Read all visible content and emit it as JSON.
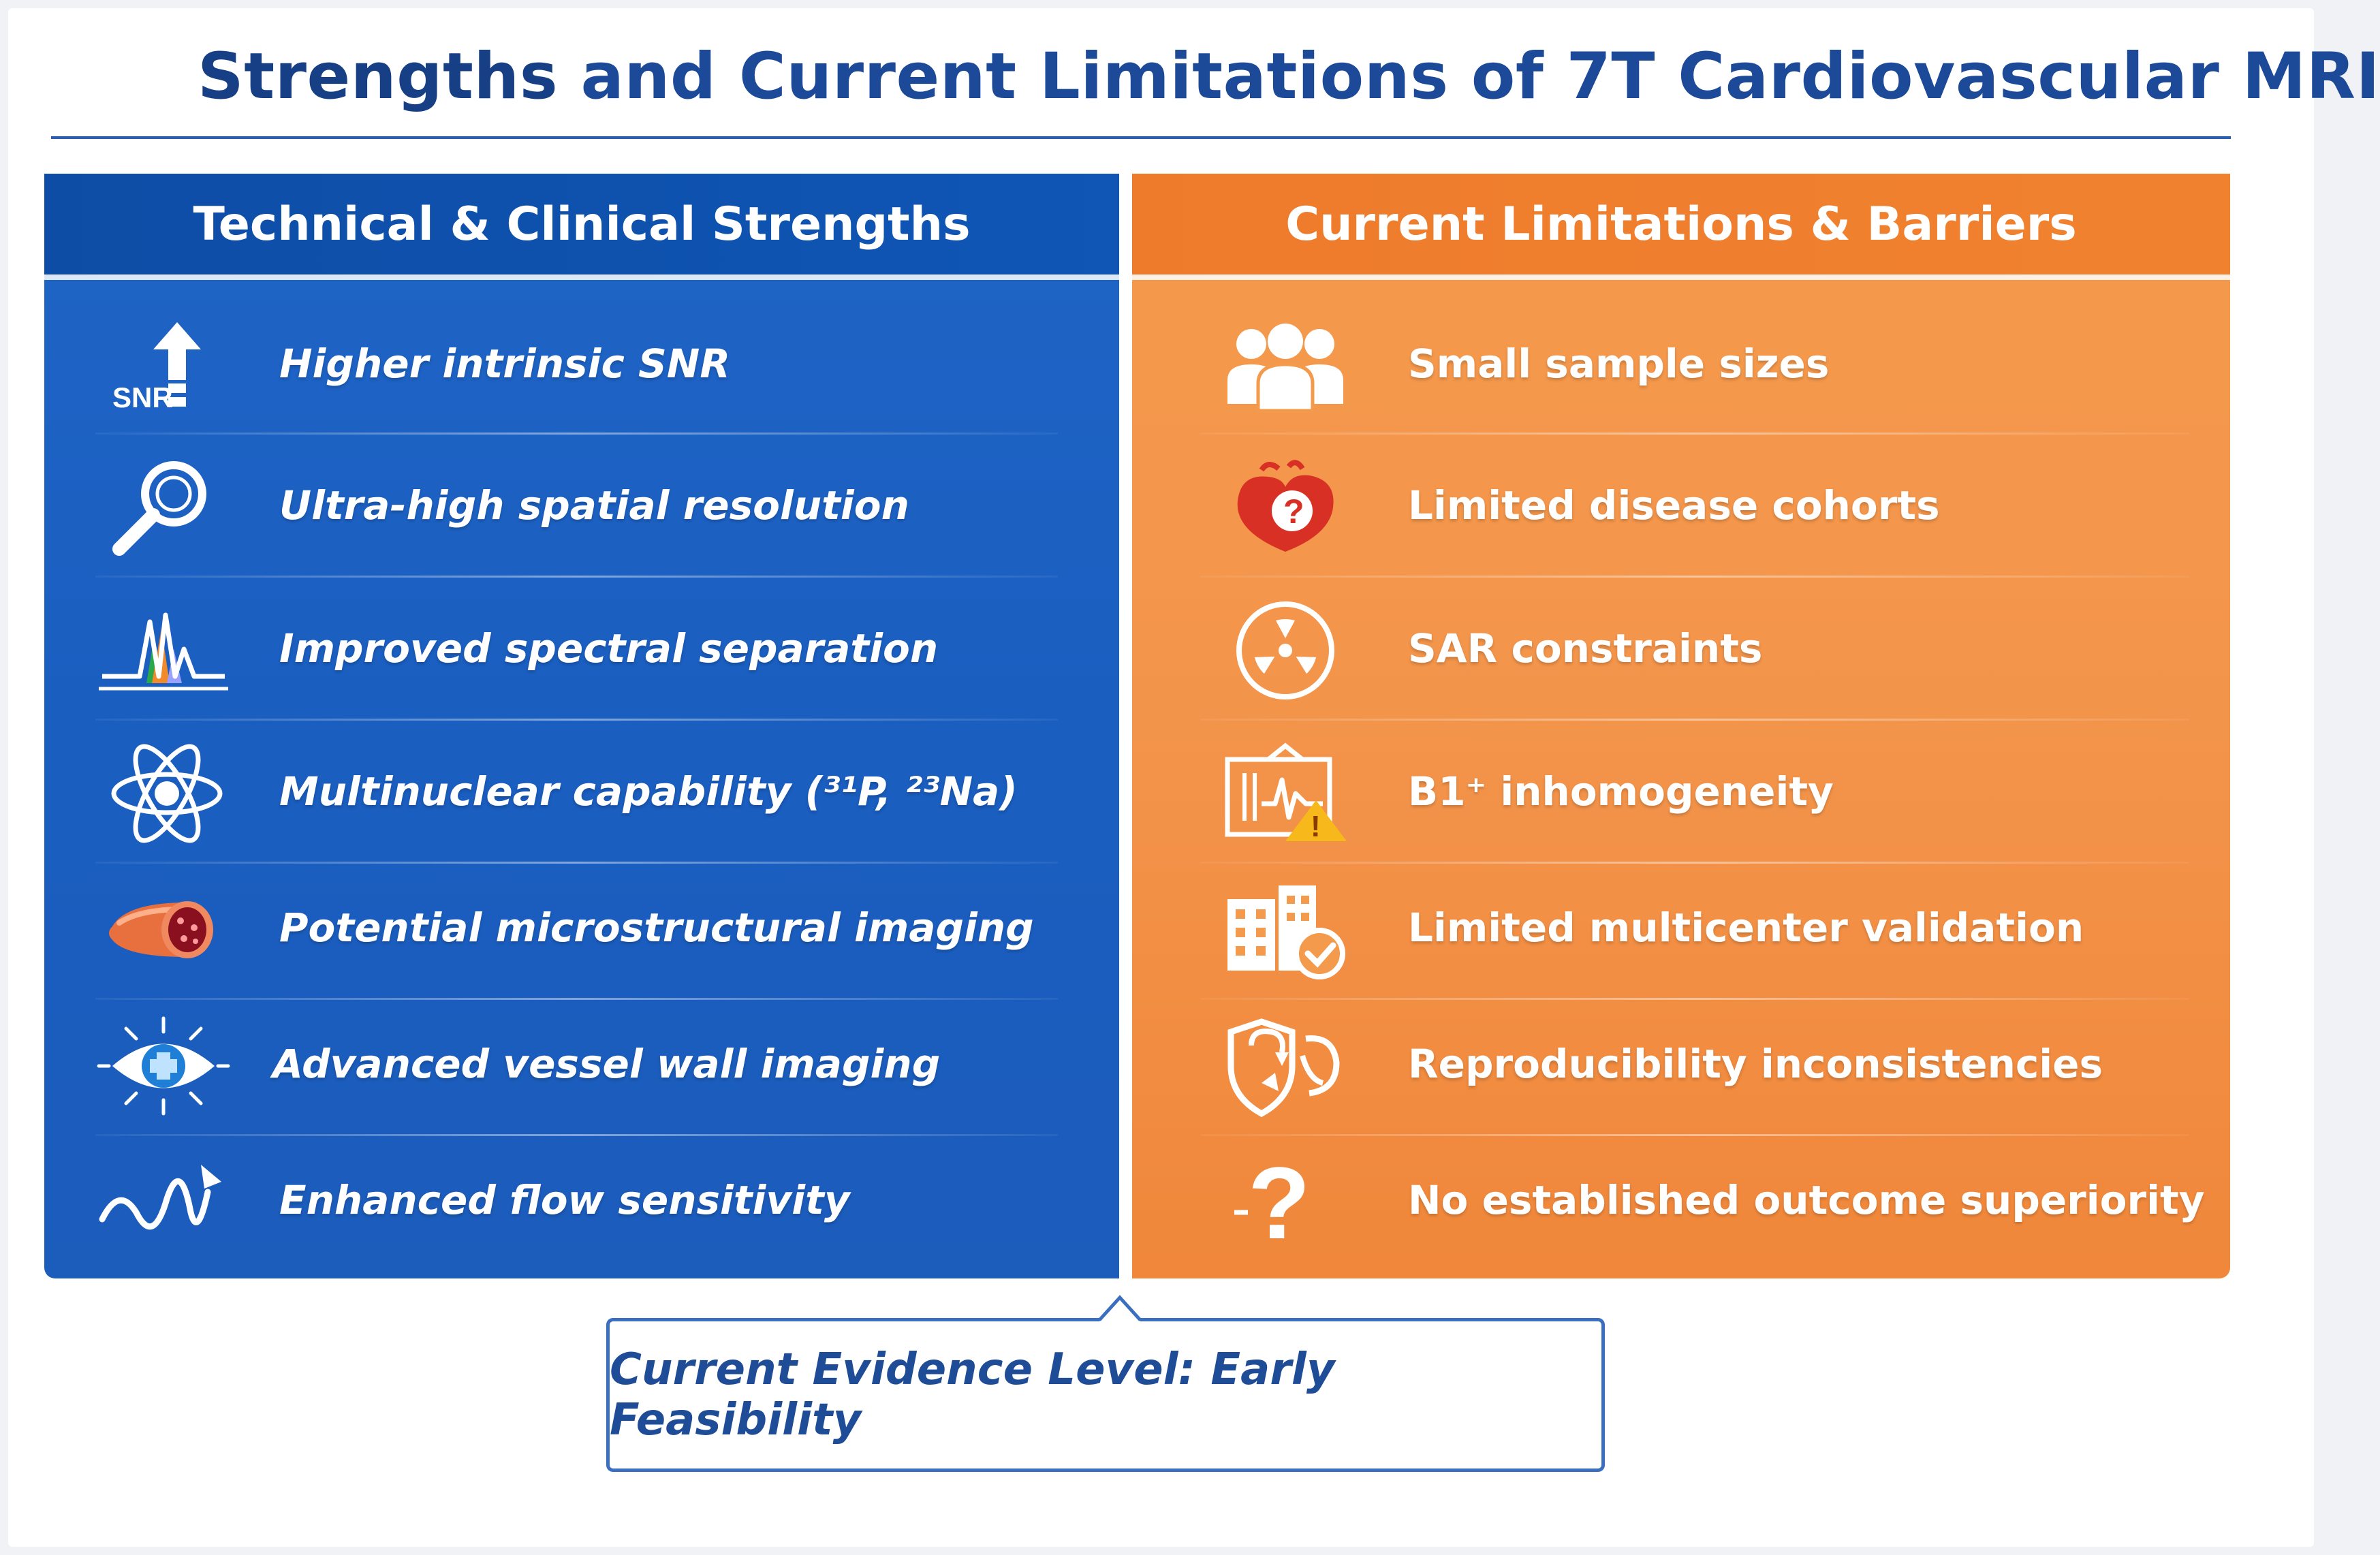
{
  "title": {
    "first_word": "Strengths",
    "rest": "and Current Limitations of 7T Cardiovascular MRI"
  },
  "colors": {
    "title_blue": "#1c4a98",
    "strength_panel": "#1a5ec0",
    "limitation_panel": "#f3944b",
    "icon_red": "#d93025",
    "icon_yellow": "#f6b81a"
  },
  "strengths": {
    "header": "Technical & Clinical Strengths",
    "items": [
      {
        "label": "Higher intrinsic SNR",
        "icon": "snr-up-arrow-icon",
        "icon_text": "SNR"
      },
      {
        "label": "Ultra-high spatial resolution",
        "icon": "magnifier-icon"
      },
      {
        "label": "Improved spectral separation",
        "icon": "spectrum-peaks-icon"
      },
      {
        "label": "Multinuclear capability (³¹P, ²³Na)",
        "icon": "atom-icon"
      },
      {
        "label": "Potential microstructural imaging",
        "icon": "vessel-cross-section-icon"
      },
      {
        "label": "Advanced vessel wall imaging",
        "icon": "vessel-wall-eye-icon"
      },
      {
        "label": "Enhanced flow sensitivity",
        "icon": "flow-wave-icon"
      }
    ]
  },
  "limitations": {
    "header": "Current Limitations & Barriers",
    "items": [
      {
        "label": "Small sample sizes",
        "icon": "people-group-icon"
      },
      {
        "label": "Limited disease cohorts",
        "icon": "heart-question-icon",
        "icon_text": "?"
      },
      {
        "label": "SAR constraints",
        "icon": "radiation-icon"
      },
      {
        "label": "B1⁺ inhomogeneity",
        "icon": "field-warning-icon",
        "icon_text": "!"
      },
      {
        "label": "Limited multicenter validation",
        "icon": "buildings-check-icon"
      },
      {
        "label": "Reproducibility inconsistencies",
        "icon": "shield-arrows-icon"
      },
      {
        "label": "No established outcome superiority",
        "icon": "question-heartbeat-icon",
        "icon_text": "?"
      }
    ]
  },
  "evidence": {
    "label": "Current Evidence Level: Early Feasibility"
  }
}
